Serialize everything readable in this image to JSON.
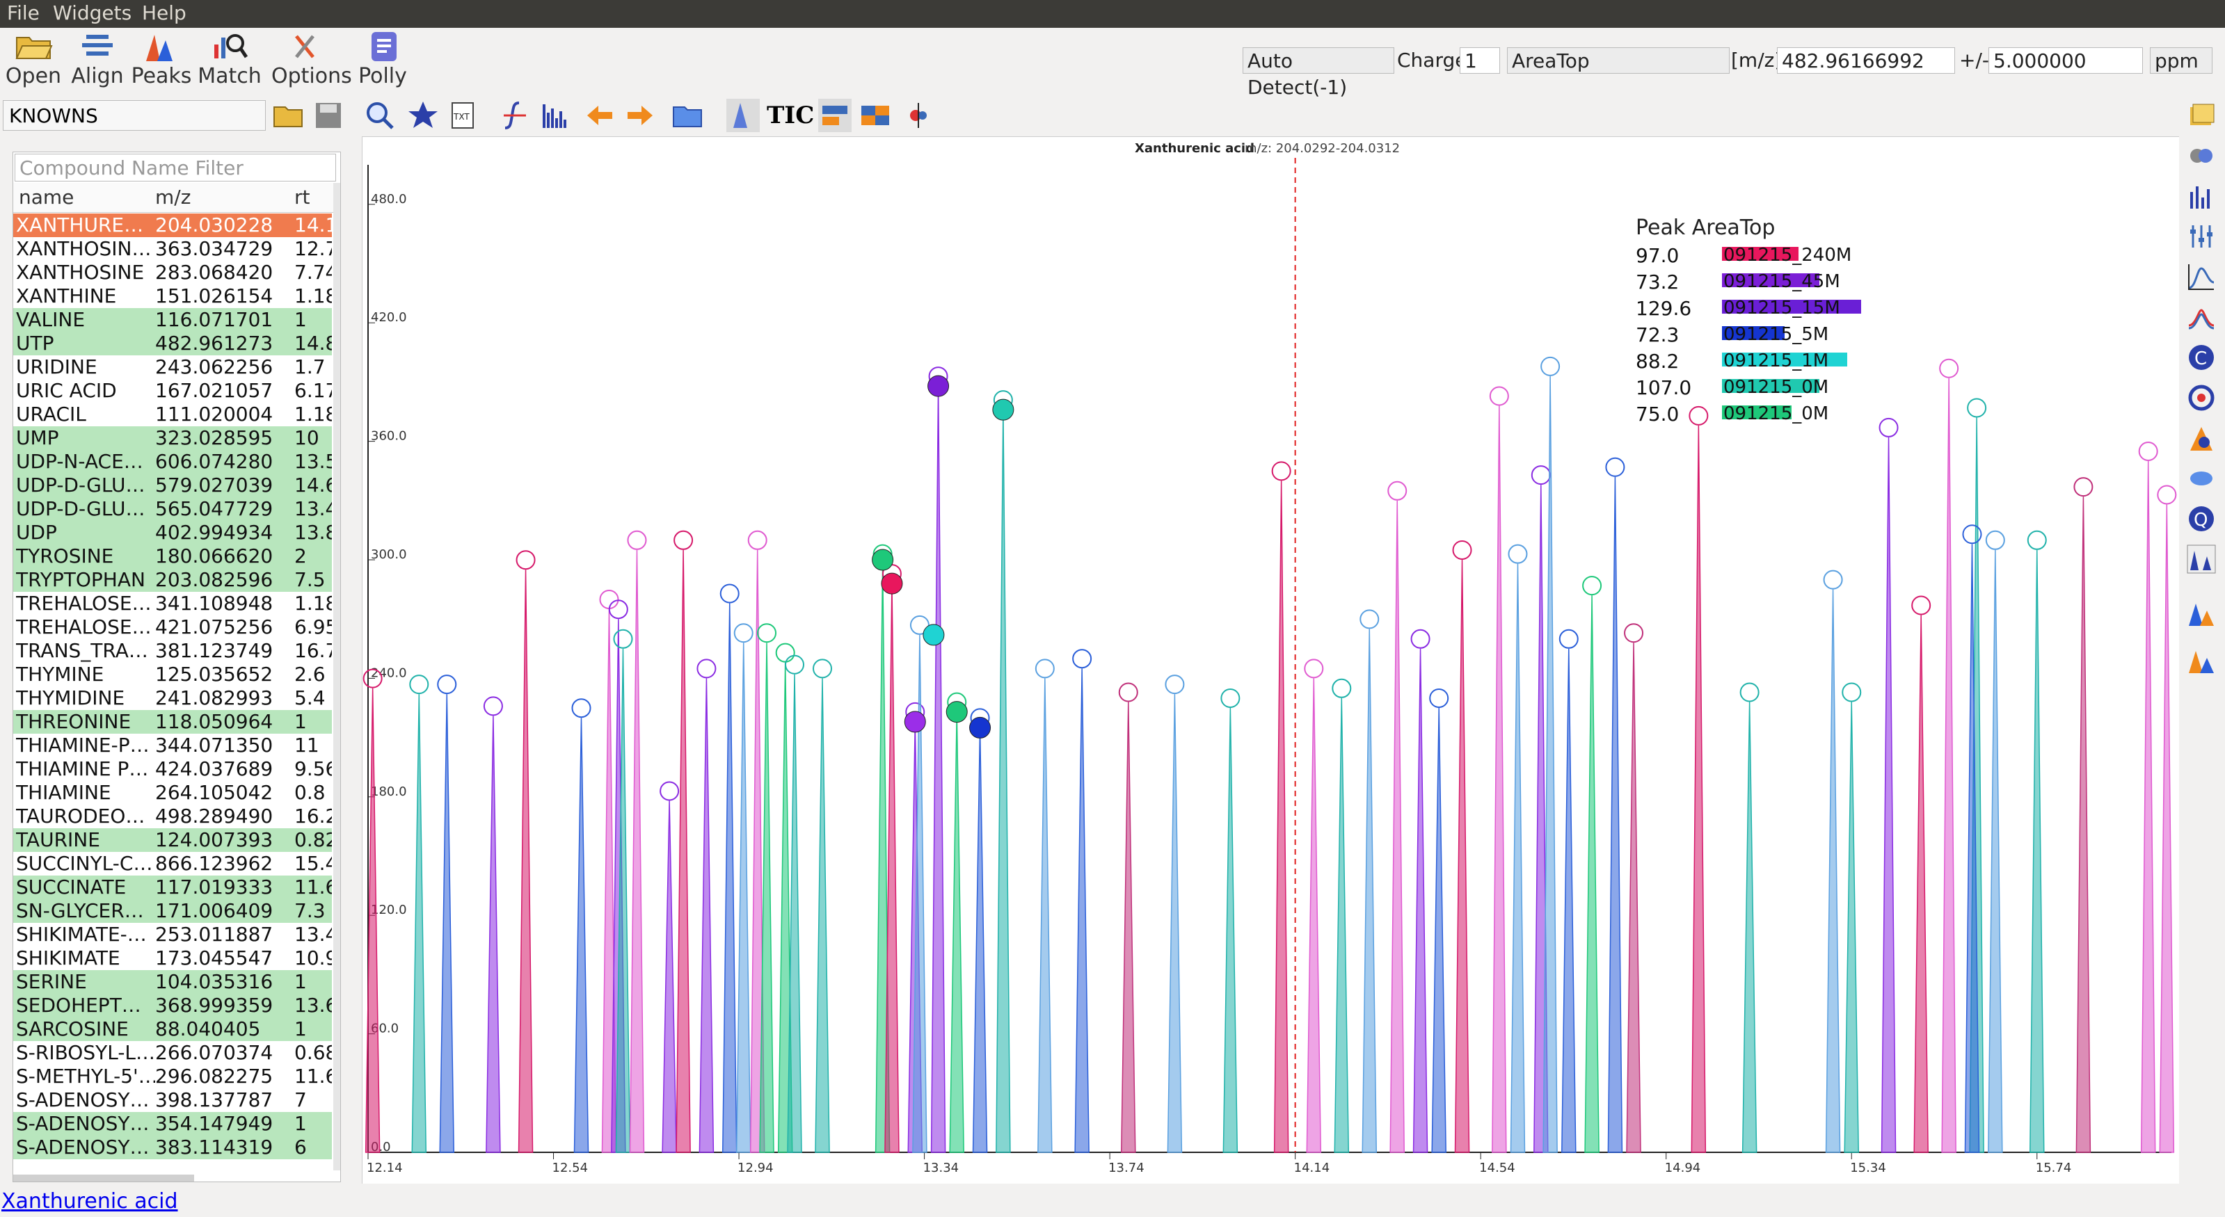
{
  "menu": [
    "File",
    "Widgets",
    "Help"
  ],
  "toolbar": {
    "open": "Open",
    "align": "Align",
    "peaks": "Peaks",
    "match": "Match",
    "options": "Options",
    "polly": "Polly"
  },
  "controls": {
    "auto_detect": "Auto Detect(-1)",
    "charge_label": "Charge",
    "charge_value": "1",
    "quant_type": "AreaTop",
    "mz_label": "[m/z]",
    "mz_value": "482.96166992",
    "tol_label": "+/-",
    "tol_value": "5.000000",
    "tol_unit": "ppm"
  },
  "known_selector": "KNOWNS",
  "tic_label": "TIC",
  "filter_placeholder": "Compound Name Filter",
  "table": {
    "headers": [
      "name",
      "m/z",
      "rt"
    ],
    "rows": [
      [
        "XANTHURE…",
        "204.030228",
        "14.1",
        "selected"
      ],
      [
        "XANTHOSIN…",
        "363.034729",
        "12.7",
        ""
      ],
      [
        "XANTHOSINE",
        "283.068420",
        "7.74",
        ""
      ],
      [
        "XANTHINE",
        "151.026154",
        "1.18",
        ""
      ],
      [
        "VALINE",
        "116.071701",
        "1",
        "green"
      ],
      [
        "UTP",
        "482.961273",
        "14.8",
        "green"
      ],
      [
        "URIDINE",
        "243.062256",
        "1.7",
        ""
      ],
      [
        "URIC ACID",
        "167.021057",
        "6.17",
        ""
      ],
      [
        "URACIL",
        "111.020004",
        "1.18",
        ""
      ],
      [
        "UMP",
        "323.028595",
        "10",
        "green"
      ],
      [
        "UDP-N-ACE…",
        "606.074280",
        "13.5",
        "green"
      ],
      [
        "UDP-D-GLU…",
        "579.027039",
        "14.6",
        "green"
      ],
      [
        "UDP-D-GLU…",
        "565.047729",
        "13.4",
        "green"
      ],
      [
        "UDP",
        "402.994934",
        "13.8",
        "green"
      ],
      [
        "TYROSINE",
        "180.066620",
        "2",
        "green"
      ],
      [
        "TRYPTOPHAN",
        "203.082596",
        "7.5",
        "green"
      ],
      [
        "TREHALOSE…",
        "341.108948",
        "1.18",
        ""
      ],
      [
        "TREHALOSE…",
        "421.075256",
        "6.95",
        ""
      ],
      [
        "TRANS_TRA…",
        "381.123749",
        "16.7",
        ""
      ],
      [
        "THYMINE",
        "125.035652",
        "2.6",
        ""
      ],
      [
        "THYMIDINE",
        "241.082993",
        "5.4",
        ""
      ],
      [
        "THREONINE",
        "118.050964",
        "1",
        "green"
      ],
      [
        "THIAMINE-P…",
        "344.071350",
        "11",
        ""
      ],
      [
        "THIAMINE P…",
        "424.037689",
        "9.56",
        ""
      ],
      [
        "THIAMINE",
        "264.105042",
        "0.8",
        ""
      ],
      [
        "TAURODEO…",
        "498.289490",
        "16.2",
        ""
      ],
      [
        "TAURINE",
        "124.007393",
        "0.82",
        "green"
      ],
      [
        "SUCCINYL-C…",
        "866.123962",
        "15.4",
        ""
      ],
      [
        "SUCCINATE",
        "117.019333",
        "11.6",
        "green"
      ],
      [
        "SN-GLYCER…",
        "171.006409",
        "7.3",
        "green"
      ],
      [
        "SHIKIMATE-…",
        "253.011887",
        "13.4",
        ""
      ],
      [
        "SHIKIMATE",
        "173.045547",
        "10.9",
        ""
      ],
      [
        "SERINE",
        "104.035316",
        "1",
        "green"
      ],
      [
        "SEDOHEPT…",
        "368.999359",
        "13.6",
        "green"
      ],
      [
        "SARCOSINE",
        "88.040405",
        "1",
        "green"
      ],
      [
        "S-RIBOSYL-L…",
        "266.070374",
        "0.68",
        ""
      ],
      [
        "S-METHYL-5'…",
        "296.082275",
        "11.6",
        ""
      ],
      [
        "S-ADENOSY…",
        "398.137787",
        "7",
        ""
      ],
      [
        "S-ADENOSY…",
        "354.147949",
        "1",
        "green"
      ],
      [
        "S-ADENOSY…",
        "383.114319",
        "6",
        "green"
      ]
    ],
    "colors": {
      "selected": "#f07b4e",
      "green": "#b8e6bd"
    }
  },
  "chart_data": {
    "type": "area",
    "title": "Xanthurenic acid",
    "subtitle": "m/z: 204.0292-204.0312",
    "xlim": [
      12.14,
      16.03
    ],
    "ylim": [
      0,
      500
    ],
    "x_ticks": [
      "12.14",
      "12.54",
      "12.94",
      "13.34",
      "13.74",
      "14.14",
      "14.54",
      "14.94",
      "15.34",
      "15.74"
    ],
    "y_ticks": [
      "0.0",
      "60.0",
      "120.0",
      "180.0",
      "240.0",
      "300.0",
      "360.0",
      "420.0",
      "480.0"
    ],
    "expected_rt": 14.14,
    "series_colors": [
      "#d6196a",
      "#8a2be2",
      "#2b5fd9",
      "#20b2aa",
      "#1ec87a",
      "#e05ad0",
      "#5aa0e0",
      "#c0307a"
    ],
    "peaks": [
      {
        "x": 12.15,
        "y": 235,
        "c": 0
      },
      {
        "x": 12.25,
        "y": 232,
        "c": 3
      },
      {
        "x": 12.31,
        "y": 232,
        "c": 2
      },
      {
        "x": 12.41,
        "y": 221,
        "c": 1
      },
      {
        "x": 12.48,
        "y": 295,
        "c": 0
      },
      {
        "x": 12.6,
        "y": 220,
        "c": 2
      },
      {
        "x": 12.66,
        "y": 275,
        "c": 5
      },
      {
        "x": 12.68,
        "y": 270,
        "c": 1
      },
      {
        "x": 12.69,
        "y": 255,
        "c": 3
      },
      {
        "x": 12.72,
        "y": 305,
        "c": 5
      },
      {
        "x": 12.79,
        "y": 178,
        "c": 1
      },
      {
        "x": 12.82,
        "y": 305,
        "c": 0
      },
      {
        "x": 12.87,
        "y": 240,
        "c": 1
      },
      {
        "x": 12.92,
        "y": 278,
        "c": 2
      },
      {
        "x": 12.95,
        "y": 258,
        "c": 6
      },
      {
        "x": 12.98,
        "y": 305,
        "c": 5
      },
      {
        "x": 13.0,
        "y": 258,
        "c": 4
      },
      {
        "x": 13.04,
        "y": 248,
        "c": 4
      },
      {
        "x": 13.06,
        "y": 242,
        "c": 3
      },
      {
        "x": 13.12,
        "y": 240,
        "c": 3
      },
      {
        "x": 13.25,
        "y": 298,
        "c": 4
      },
      {
        "x": 13.27,
        "y": 288,
        "c": 0
      },
      {
        "x": 13.32,
        "y": 218,
        "c": 1
      },
      {
        "x": 13.33,
        "y": 262,
        "c": 6
      },
      {
        "x": 13.37,
        "y": 388,
        "c": 1
      },
      {
        "x": 13.41,
        "y": 223,
        "c": 4
      },
      {
        "x": 13.46,
        "y": 215,
        "c": 2
      },
      {
        "x": 13.51,
        "y": 376,
        "c": 3
      },
      {
        "x": 13.6,
        "y": 240,
        "c": 6
      },
      {
        "x": 13.68,
        "y": 245,
        "c": 2
      },
      {
        "x": 13.78,
        "y": 228,
        "c": 7
      },
      {
        "x": 13.88,
        "y": 232,
        "c": 6
      },
      {
        "x": 14.0,
        "y": 225,
        "c": 3
      },
      {
        "x": 14.11,
        "y": 340,
        "c": 0
      },
      {
        "x": 14.18,
        "y": 240,
        "c": 5
      },
      {
        "x": 14.24,
        "y": 230,
        "c": 3
      },
      {
        "x": 14.3,
        "y": 265,
        "c": 6
      },
      {
        "x": 14.36,
        "y": 330,
        "c": 5
      },
      {
        "x": 14.41,
        "y": 255,
        "c": 1
      },
      {
        "x": 14.45,
        "y": 225,
        "c": 2
      },
      {
        "x": 14.5,
        "y": 300,
        "c": 0
      },
      {
        "x": 14.58,
        "y": 378,
        "c": 5
      },
      {
        "x": 14.62,
        "y": 298,
        "c": 6
      },
      {
        "x": 14.67,
        "y": 338,
        "c": 1
      },
      {
        "x": 14.69,
        "y": 393,
        "c": 6
      },
      {
        "x": 14.73,
        "y": 255,
        "c": 2
      },
      {
        "x": 14.78,
        "y": 282,
        "c": 4
      },
      {
        "x": 14.83,
        "y": 342,
        "c": 2
      },
      {
        "x": 14.87,
        "y": 258,
        "c": 7
      },
      {
        "x": 15.01,
        "y": 368,
        "c": 0
      },
      {
        "x": 15.12,
        "y": 228,
        "c": 3
      },
      {
        "x": 15.3,
        "y": 285,
        "c": 6
      },
      {
        "x": 15.34,
        "y": 228,
        "c": 3
      },
      {
        "x": 15.42,
        "y": 362,
        "c": 1
      },
      {
        "x": 15.49,
        "y": 272,
        "c": 0
      },
      {
        "x": 15.55,
        "y": 392,
        "c": 5
      },
      {
        "x": 15.61,
        "y": 372,
        "c": 3
      },
      {
        "x": 15.6,
        "y": 308,
        "c": 2
      },
      {
        "x": 15.65,
        "y": 305,
        "c": 6
      },
      {
        "x": 15.74,
        "y": 305,
        "c": 3
      },
      {
        "x": 15.84,
        "y": 332,
        "c": 7
      },
      {
        "x": 15.98,
        "y": 350,
        "c": 5
      },
      {
        "x": 16.02,
        "y": 328,
        "c": 5
      }
    ],
    "markers": [
      {
        "x": 13.25,
        "y": 300,
        "c": "#1ec87a"
      },
      {
        "x": 13.27,
        "y": 288,
        "c": "#e8175d"
      },
      {
        "x": 13.37,
        "y": 388,
        "c": "#7b1fd6"
      },
      {
        "x": 13.32,
        "y": 218,
        "c": "#9b2ee8"
      },
      {
        "x": 13.36,
        "y": 262,
        "c": "#1fd3d3"
      },
      {
        "x": 13.41,
        "y": 223,
        "c": "#1ec87a"
      },
      {
        "x": 13.46,
        "y": 215,
        "c": "#1535d0"
      },
      {
        "x": 13.51,
        "y": 376,
        "c": "#20c9b0"
      }
    ],
    "legend": {
      "title": "Peak AreaTop",
      "items": [
        {
          "value": "97.0",
          "label": "091215_240M",
          "color": "#e8175d",
          "w": 0.55
        },
        {
          "value": "73.2",
          "label": "091215_45M",
          "color": "#7b1fd6",
          "w": 0.7
        },
        {
          "value": "129.6",
          "label": "091215_15M",
          "color": "#6a1fd6",
          "w": 1.0
        },
        {
          "value": "72.3",
          "label": "091215_5M",
          "color": "#1535d0",
          "w": 0.45
        },
        {
          "value": "88.2",
          "label": "091215_1M",
          "color": "#1fd3d3",
          "w": 0.9
        },
        {
          "value": "107.0",
          "label": "091215_0M",
          "color": "#20c9b0",
          "w": 0.7
        },
        {
          "value": "75.0",
          "label": "091215_0M",
          "color": "#1ec87a",
          "w": 0.5
        }
      ]
    }
  },
  "status": {
    "compound_link": "Xanthurenic acid"
  }
}
